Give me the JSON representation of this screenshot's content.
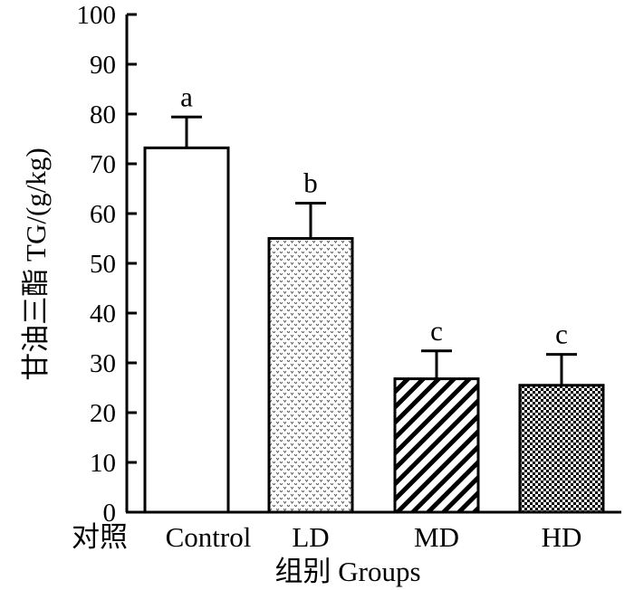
{
  "chart_data": {
    "type": "bar",
    "categories": [
      "Control",
      "LD",
      "MD",
      "HD"
    ],
    "values": [
      73.2,
      55.0,
      26.8,
      25.5
    ],
    "errors": [
      6.2,
      7.1,
      5.6,
      6.2
    ],
    "significance": [
      "a",
      "b",
      "c",
      "c"
    ],
    "patterns": [
      "none",
      "dots",
      "diagonal",
      "checker"
    ],
    "ylabel": "甘油三酯  TG/(g/kg)",
    "xlabel": "组别 Groups",
    "x_prefix": "对照",
    "ylim": [
      0,
      100
    ],
    "yticks": [
      0,
      10,
      20,
      30,
      40,
      50,
      60,
      70,
      80,
      90,
      100
    ],
    "grid": false
  }
}
